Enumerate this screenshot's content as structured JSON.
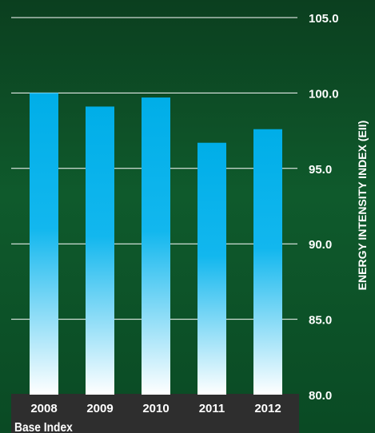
{
  "chart_data": {
    "type": "bar",
    "categories": [
      "2008",
      "2009",
      "2010",
      "2011",
      "2012"
    ],
    "values": [
      100.0,
      99.1,
      99.7,
      96.7,
      97.6
    ],
    "ylabel": "ENERGY INTENSITY INDEX (EII)",
    "ylim": [
      80,
      105
    ],
    "yticks": [
      "105.0",
      "100.0",
      "95.0",
      "90.0",
      "85.0",
      "80.0"
    ],
    "y_axis_side": "right",
    "grid": true,
    "footer_label": "Base Index",
    "colors": {
      "bar_top": "#00aee8",
      "bar_mid": "#12b7ee",
      "bar_bottom": "#ffffff",
      "grid": "#ffffff",
      "text": "#ffffff",
      "band": "#2e2e2e",
      "background": "#0d4a25"
    }
  }
}
